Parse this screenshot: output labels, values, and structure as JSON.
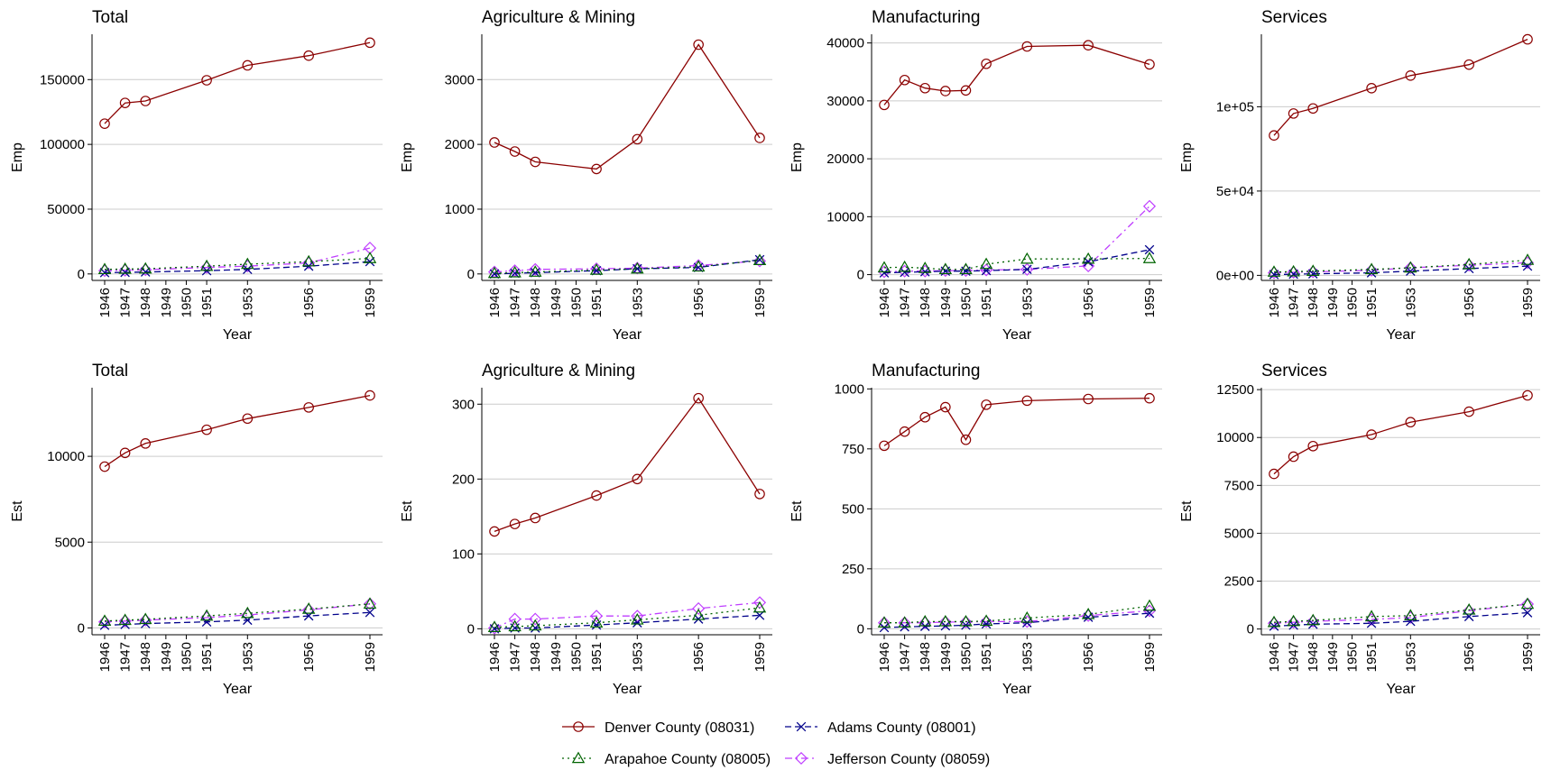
{
  "series_styles": [
    {
      "name": "Denver County (08031)",
      "color": "#8B0000",
      "marker": "circle",
      "dash": "solid"
    },
    {
      "name": "Arapahoe County (08005)",
      "color": "#006400",
      "marker": "triangle",
      "dash": "dotted"
    },
    {
      "name": "Adams County (08001)",
      "color": "#00008B",
      "marker": "x",
      "dash": "dashed"
    },
    {
      "name": "Jefferson County (08059)",
      "color": "#BF3EFF",
      "marker": "diamond",
      "dash": "dashdot"
    }
  ],
  "legend": {
    "placement": "bottom",
    "entries": [
      "Denver County (08031)",
      "Adams County (08001)",
      "Arapahoe County (08005)",
      "Jefferson County (08059)"
    ]
  },
  "chart_data": [
    {
      "type": "line",
      "title": "Total",
      "xlabel": "Year",
      "ylabel": "Emp",
      "x": [
        1946,
        1947,
        1948,
        1951,
        1953,
        1956,
        1959
      ],
      "xticks": [
        "1946",
        "1947",
        "1948",
        "1949",
        "1950",
        "1951",
        "1953",
        "1956",
        "1959"
      ],
      "ylim": [
        -5000,
        185000
      ],
      "yticks": [
        0,
        50000,
        100000,
        150000
      ],
      "yticklabels": [
        "0",
        "50000",
        "100000",
        "150000"
      ],
      "grid": "horizontal",
      "series": [
        {
          "name": "Denver County (08031)",
          "values": [
            116000,
            132000,
            133500,
            149500,
            161000,
            168500,
            178500
          ]
        },
        {
          "name": "Arapahoe County (08005)",
          "values": [
            3500,
            3800,
            4000,
            6000,
            7500,
            9500,
            12000
          ]
        },
        {
          "name": "Adams County (08001)",
          "values": [
            1000,
            1200,
            1500,
            2500,
            3500,
            6000,
            9500
          ]
        },
        {
          "name": "Jefferson County (08059)",
          "values": [
            2500,
            2800,
            3200,
            5000,
            6000,
            8500,
            20000
          ]
        }
      ]
    },
    {
      "type": "line",
      "title": "Agriculture & Mining",
      "xlabel": "Year",
      "ylabel": "Emp",
      "x": [
        1946,
        1947,
        1948,
        1951,
        1953,
        1956,
        1959
      ],
      "xticks": [
        "1946",
        "1947",
        "1948",
        "1949",
        "1950",
        "1951",
        "1953",
        "1956",
        "1959"
      ],
      "ylim": [
        -100,
        3700
      ],
      "yticks": [
        0,
        1000,
        2000,
        3000
      ],
      "yticklabels": [
        "0",
        "1000",
        "2000",
        "3000"
      ],
      "grid": "horizontal",
      "series": [
        {
          "name": "Denver County (08031)",
          "values": [
            2030,
            1890,
            1730,
            1620,
            2080,
            3540,
            2100
          ]
        },
        {
          "name": "Arapahoe County (08005)",
          "values": [
            10,
            20,
            30,
            60,
            80,
            110,
            210
          ]
        },
        {
          "name": "Adams County (08001)",
          "values": [
            0,
            10,
            20,
            50,
            80,
            100,
            220
          ]
        },
        {
          "name": "Jefferson County (08059)",
          "values": [
            30,
            50,
            70,
            80,
            90,
            130,
            200
          ]
        }
      ]
    },
    {
      "type": "line",
      "title": "Manufacturing",
      "xlabel": "Year",
      "ylabel": "Emp",
      "x": [
        1946,
        1947,
        1948,
        1949,
        1950,
        1951,
        1953,
        1956,
        1959
      ],
      "xticks": [
        "1946",
        "1947",
        "1948",
        "1949",
        "1950",
        "1951",
        "1953",
        "1956",
        "1959"
      ],
      "ylim": [
        -1000,
        41500
      ],
      "yticks": [
        0,
        10000,
        20000,
        30000,
        40000
      ],
      "yticklabels": [
        "0",
        "10000",
        "20000",
        "30000",
        "40000"
      ],
      "grid": "horizontal",
      "series": [
        {
          "name": "Denver County (08031)",
          "values": [
            29300,
            33600,
            32200,
            31700,
            31800,
            36400,
            39400,
            39600,
            36300
          ]
        },
        {
          "name": "Arapahoe County (08005)",
          "values": [
            1200,
            1300,
            1100,
            900,
            900,
            1800,
            2700,
            2700,
            2800
          ]
        },
        {
          "name": "Adams County (08001)",
          "values": [
            300,
            400,
            500,
            600,
            600,
            700,
            900,
            2200,
            4300
          ]
        },
        {
          "name": "Jefferson County (08059)",
          "values": [
            500,
            600,
            600,
            700,
            700,
            800,
            900,
            1500,
            11800
          ]
        }
      ]
    },
    {
      "type": "line",
      "title": "Services",
      "xlabel": "Year",
      "ylabel": "Emp",
      "x": [
        1946,
        1947,
        1948,
        1951,
        1953,
        1956,
        1959
      ],
      "xticks": [
        "1946",
        "1947",
        "1948",
        "1949",
        "1950",
        "1951",
        "1953",
        "1956",
        "1959"
      ],
      "ylim": [
        -3000,
        143000
      ],
      "yticks": [
        0,
        50000,
        100000
      ],
      "yticklabels": [
        "0e+00",
        "5e+04",
        "1e+05"
      ],
      "grid": "horizontal",
      "series": [
        {
          "name": "Denver County (08031)",
          "values": [
            83000,
            96000,
            99000,
            111000,
            118500,
            125000,
            140000
          ]
        },
        {
          "name": "Arapahoe County (08005)",
          "values": [
            2000,
            2200,
            2500,
            3500,
            4500,
            6500,
            9000
          ]
        },
        {
          "name": "Adams County (08001)",
          "values": [
            500,
            700,
            900,
            1500,
            2500,
            4000,
            5500
          ]
        },
        {
          "name": "Jefferson County (08059)",
          "values": [
            1500,
            1800,
            2100,
            3000,
            4500,
            6000,
            7500
          ]
        }
      ]
    },
    {
      "type": "line",
      "title": "Total",
      "xlabel": "Year",
      "ylabel": "Est",
      "x": [
        1946,
        1947,
        1948,
        1951,
        1953,
        1956,
        1959
      ],
      "xticks": [
        "1946",
        "1947",
        "1948",
        "1949",
        "1950",
        "1951",
        "1953",
        "1956",
        "1959"
      ],
      "ylim": [
        -400,
        14000
      ],
      "yticks": [
        0,
        5000,
        10000
      ],
      "yticklabels": [
        "0",
        "5000",
        "10000"
      ],
      "grid": "horizontal",
      "series": [
        {
          "name": "Denver County (08031)",
          "values": [
            9400,
            10200,
            10750,
            11550,
            12200,
            12850,
            13550
          ]
        },
        {
          "name": "Arapahoe County (08005)",
          "values": [
            400,
            450,
            500,
            700,
            850,
            1100,
            1400
          ]
        },
        {
          "name": "Adams County (08001)",
          "values": [
            150,
            200,
            250,
            350,
            450,
            700,
            900
          ]
        },
        {
          "name": "Jefferson County (08059)",
          "values": [
            350,
            400,
            450,
            600,
            750,
            1050,
            1400
          ]
        }
      ]
    },
    {
      "type": "line",
      "title": "Agriculture & Mining",
      "xlabel": "Year",
      "ylabel": "Est",
      "x": [
        1946,
        1947,
        1948,
        1951,
        1953,
        1956,
        1959
      ],
      "xticks": [
        "1946",
        "1947",
        "1948",
        "1949",
        "1950",
        "1951",
        "1953",
        "1956",
        "1959"
      ],
      "ylim": [
        -8,
        322
      ],
      "yticks": [
        0,
        100,
        200,
        300
      ],
      "yticklabels": [
        "0",
        "100",
        "200",
        "300"
      ],
      "grid": "horizontal",
      "series": [
        {
          "name": "Denver County (08031)",
          "values": [
            130,
            140,
            148,
            178,
            200,
            308,
            180
          ]
        },
        {
          "name": "Arapahoe County (08005)",
          "values": [
            2,
            3,
            4,
            8,
            12,
            18,
            28
          ]
        },
        {
          "name": "Adams County (08001)",
          "values": [
            0,
            1,
            1,
            5,
            8,
            13,
            18
          ]
        },
        {
          "name": "Jefferson County (08059)",
          "values": [
            1,
            13,
            13,
            17,
            17,
            27,
            35
          ]
        }
      ]
    },
    {
      "type": "line",
      "title": "Manufacturing",
      "xlabel": "Year",
      "ylabel": "Est",
      "x": [
        1946,
        1947,
        1948,
        1949,
        1950,
        1951,
        1953,
        1956,
        1959
      ],
      "xticks": [
        "1946",
        "1947",
        "1948",
        "1949",
        "1950",
        "1951",
        "1953",
        "1956",
        "1959"
      ],
      "ylim": [
        -25,
        1005
      ],
      "yticks": [
        0,
        250,
        500,
        750,
        1000
      ],
      "yticklabels": [
        "0",
        "250",
        "500",
        "750",
        "1000"
      ],
      "grid": "horizontal",
      "series": [
        {
          "name": "Denver County (08031)",
          "values": [
            763,
            822,
            882,
            924,
            788,
            934,
            951,
            958,
            961
          ]
        },
        {
          "name": "Arapahoe County (08005)",
          "values": [
            25,
            25,
            30,
            30,
            30,
            32,
            45,
            60,
            95
          ]
        },
        {
          "name": "Adams County (08001)",
          "values": [
            5,
            8,
            10,
            12,
            15,
            20,
            25,
            48,
            65
          ]
        },
        {
          "name": "Jefferson County (08059)",
          "values": [
            25,
            25,
            25,
            28,
            28,
            30,
            30,
            55,
            75
          ]
        }
      ]
    },
    {
      "type": "line",
      "title": "Services",
      "xlabel": "Year",
      "ylabel": "Est",
      "x": [
        1946,
        1947,
        1948,
        1951,
        1953,
        1956,
        1959
      ],
      "xticks": [
        "1946",
        "1947",
        "1948",
        "1949",
        "1950",
        "1951",
        "1953",
        "1956",
        "1959"
      ],
      "ylim": [
        -300,
        12600
      ],
      "yticks": [
        0,
        2500,
        5000,
        7500,
        10000,
        12500
      ],
      "yticklabels": [
        "0",
        "2500",
        "5000",
        "7500",
        "10000",
        "12500"
      ],
      "grid": "horizontal",
      "series": [
        {
          "name": "Denver County (08031)",
          "values": [
            8100,
            9000,
            9550,
            10150,
            10800,
            11350,
            12200
          ]
        },
        {
          "name": "Arapahoe County (08005)",
          "values": [
            350,
            400,
            450,
            650,
            700,
            1000,
            1300
          ]
        },
        {
          "name": "Adams County (08001)",
          "values": [
            150,
            200,
            250,
            300,
            400,
            650,
            850
          ]
        },
        {
          "name": "Jefferson County (08059)",
          "values": [
            300,
            350,
            400,
            500,
            600,
            950,
            1300
          ]
        }
      ]
    }
  ]
}
